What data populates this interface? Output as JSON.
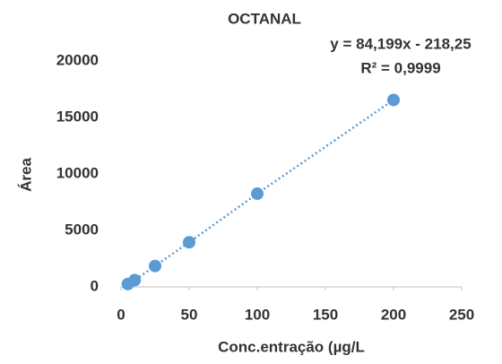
{
  "chart_data": {
    "type": "scatter",
    "title": "OCTANAL",
    "annotations": [
      "y = 84,199x - 218,25",
      "R² = 0,9999"
    ],
    "x_label": "Conc.entração (µg/L",
    "y_label": "Área",
    "series": [
      {
        "name": "OCTANAL",
        "color": "#5b9bd5",
        "x": [
          5,
          10,
          25,
          50,
          100,
          200
        ],
        "values": [
          250,
          600,
          1850,
          3950,
          8250,
          16550
        ]
      }
    ],
    "xlim": [
      0,
      250
    ],
    "xticks": [
      0,
      50,
      100,
      150,
      200,
      250
    ],
    "ylim": [
      0,
      20000
    ],
    "yticks": [
      0,
      5000,
      10000,
      15000,
      20000
    ],
    "grid": false,
    "trendline": true
  }
}
